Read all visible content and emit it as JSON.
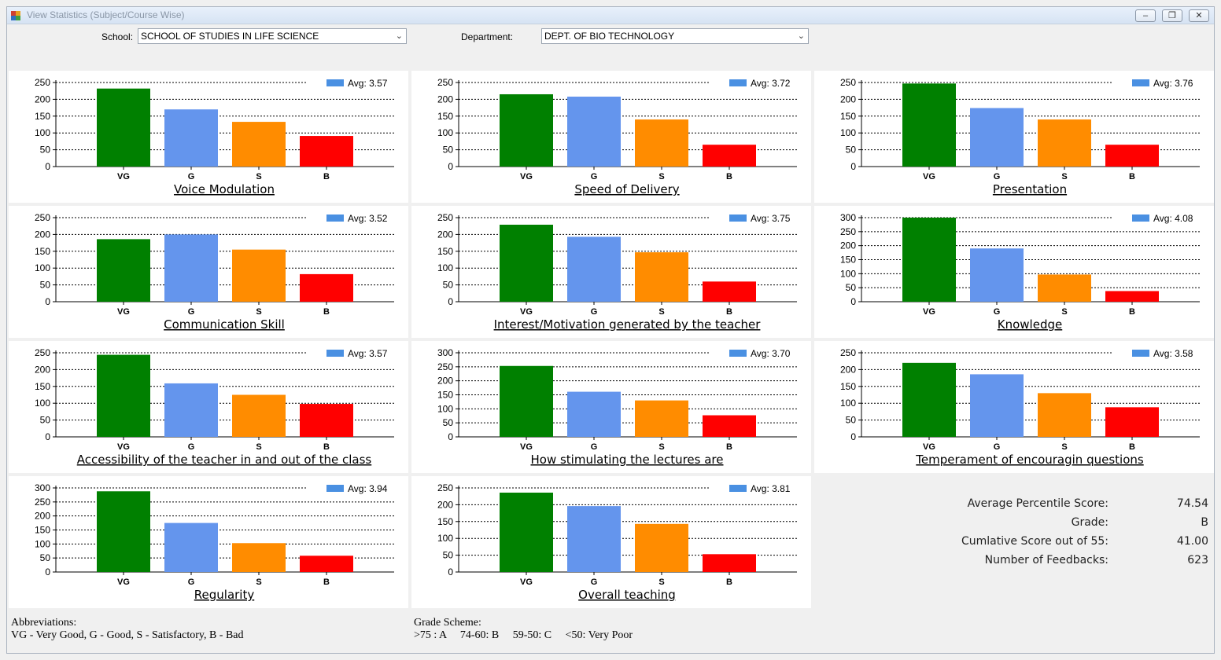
{
  "window": {
    "title": "View Statistics (Subject/Course Wise)",
    "controls": {
      "minimize": "–",
      "maximize": "❐",
      "close": "✕"
    }
  },
  "filters": {
    "school_label": "School:",
    "school_value": "SCHOOL OF STUDIES IN LIFE SCIENCE",
    "department_label": "Department:",
    "department_value": "DEPT. OF BIO TECHNOLOGY"
  },
  "colors": {
    "VG": "#008000",
    "G": "#6495ed",
    "S": "#ff8c00",
    "B": "#ff0000",
    "legend": "#4a90e2"
  },
  "chart_data": [
    {
      "type": "bar",
      "title": "Voice Modulation",
      "legend": "Avg: 3.57",
      "categories": [
        "VG",
        "G",
        "S",
        "B"
      ],
      "values": [
        232,
        170,
        133,
        91
      ],
      "ylim": [
        0,
        250
      ],
      "yticks": [
        0,
        50,
        100,
        150,
        200,
        250
      ]
    },
    {
      "type": "bar",
      "title": "Speed of Delivery",
      "legend": "Avg: 3.72",
      "categories": [
        "VG",
        "G",
        "S",
        "B"
      ],
      "values": [
        215,
        208,
        140,
        65
      ],
      "ylim": [
        0,
        250
      ],
      "yticks": [
        0,
        50,
        100,
        150,
        200,
        250
      ]
    },
    {
      "type": "bar",
      "title": "Presentation",
      "legend": "Avg: 3.76",
      "categories": [
        "VG",
        "G",
        "S",
        "B"
      ],
      "values": [
        247,
        174,
        140,
        65
      ],
      "ylim": [
        0,
        250
      ],
      "yticks": [
        0,
        50,
        100,
        150,
        200,
        250
      ]
    },
    {
      "type": "bar",
      "title": "Communication Skill",
      "legend": "Avg: 3.52",
      "categories": [
        "VG",
        "G",
        "S",
        "B"
      ],
      "values": [
        186,
        200,
        155,
        82
      ],
      "ylim": [
        0,
        250
      ],
      "yticks": [
        0,
        50,
        100,
        150,
        200,
        250
      ]
    },
    {
      "type": "bar",
      "title": "Interest/Motivation generated by the teacher",
      "legend": "Avg: 3.75",
      "categories": [
        "VG",
        "G",
        "S",
        "B"
      ],
      "values": [
        229,
        193,
        147,
        60
      ],
      "ylim": [
        0,
        250
      ],
      "yticks": [
        0,
        50,
        100,
        150,
        200,
        250
      ]
    },
    {
      "type": "bar",
      "title": "Knowledge",
      "legend": "Avg: 4.08",
      "categories": [
        "VG",
        "G",
        "S",
        "B"
      ],
      "values": [
        300,
        190,
        97,
        38
      ],
      "ylim": [
        0,
        300
      ],
      "yticks": [
        0,
        50,
        100,
        150,
        200,
        250,
        300
      ]
    },
    {
      "type": "bar",
      "title": "Accessibility of the teacher in and out of the class",
      "legend": "Avg: 3.57",
      "categories": [
        "VG",
        "G",
        "S",
        "B"
      ],
      "values": [
        244,
        159,
        125,
        98
      ],
      "ylim": [
        0,
        250
      ],
      "yticks": [
        0,
        50,
        100,
        150,
        200,
        250
      ]
    },
    {
      "type": "bar",
      "title": "How stimulating the lectures are",
      "legend": "Avg: 3.70",
      "categories": [
        "VG",
        "G",
        "S",
        "B"
      ],
      "values": [
        253,
        161,
        130,
        77
      ],
      "ylim": [
        0,
        300
      ],
      "yticks": [
        0,
        50,
        100,
        150,
        200,
        250,
        300
      ]
    },
    {
      "type": "bar",
      "title": "Temperament of encouragin questions",
      "legend": "Avg: 3.58",
      "categories": [
        "VG",
        "G",
        "S",
        "B"
      ],
      "values": [
        220,
        186,
        130,
        88
      ],
      "ylim": [
        0,
        250
      ],
      "yticks": [
        0,
        50,
        100,
        150,
        200,
        250
      ]
    },
    {
      "type": "bar",
      "title": "Regularity",
      "legend": "Avg: 3.94",
      "categories": [
        "VG",
        "G",
        "S",
        "B"
      ],
      "values": [
        288,
        175,
        103,
        58
      ],
      "ylim": [
        0,
        300
      ],
      "yticks": [
        0,
        50,
        100,
        150,
        200,
        250,
        300
      ]
    },
    {
      "type": "bar",
      "title": "Overall teaching",
      "legend": "Avg: 3.81",
      "categories": [
        "VG",
        "G",
        "S",
        "B"
      ],
      "values": [
        236,
        196,
        143,
        53
      ],
      "ylim": [
        0,
        250
      ],
      "yticks": [
        0,
        50,
        100,
        150,
        200,
        250
      ]
    }
  ],
  "summary": {
    "avg_percentile_label": "Average Percentile Score:",
    "avg_percentile_value": "74.54",
    "grade_label": "Grade:",
    "grade_value": "B",
    "cumulative_label": "Cumlative Score out of 55:",
    "cumulative_value": "41.00",
    "feedbacks_label": "Number of Feedbacks:",
    "feedbacks_value": "623"
  },
  "notes": {
    "abbrev_title": "Abbreviations:",
    "abbrev_text": "VG - Very Good, G - Good, S - Satisfactory, B - Bad",
    "grade_title": "Grade Scheme:",
    "grade_text": ">75 : A     74-60: B     59-50: C     <50: Very Poor"
  }
}
